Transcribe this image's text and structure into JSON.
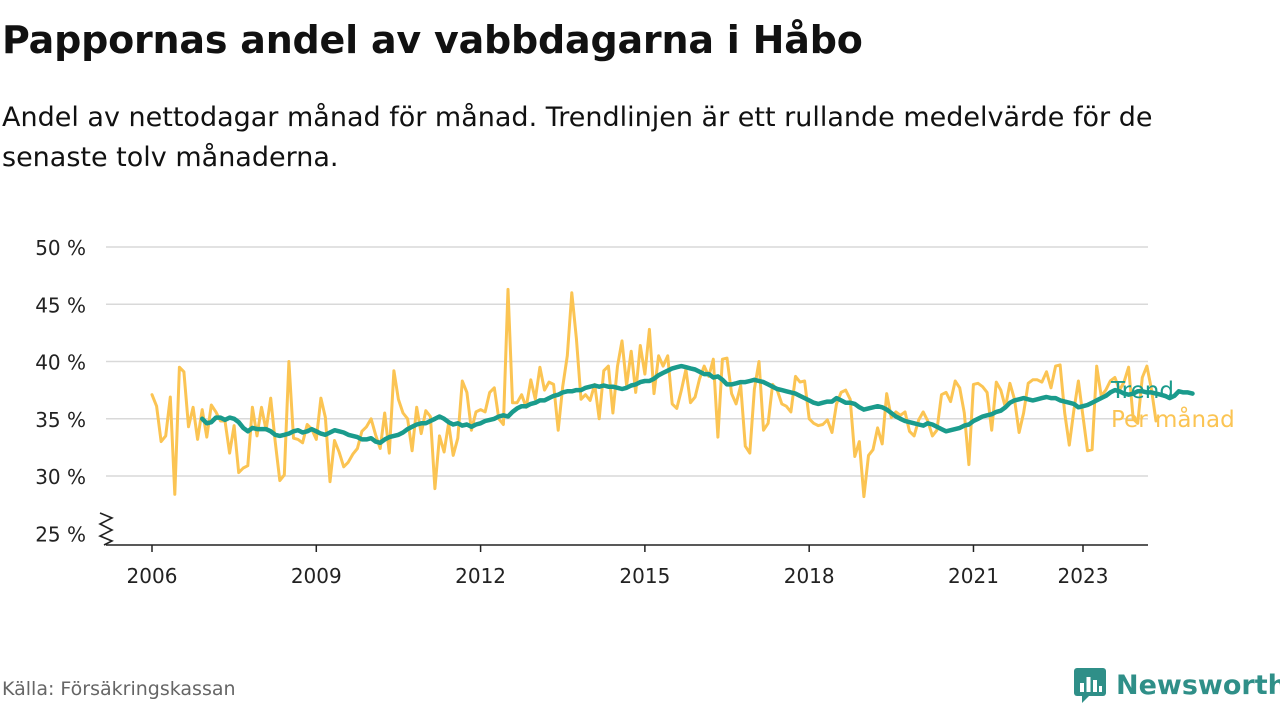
{
  "header": {
    "title": "Pappornas andel av vabbdagarna i Håbo",
    "subtitle": "Andel av nettodagar månad för månad. Trendlinjen är ett rullande medelvärde för de senaste tolv månaderna."
  },
  "footer": {
    "source": "Källa: Försäkringskassan",
    "brand": "Newsworthy"
  },
  "colors": {
    "monthly": "#fbc453",
    "trend": "#1a9b8c",
    "grid": "#d9d9d9",
    "axis": "#222222",
    "brand": "#2f8f88"
  },
  "chart_data": {
    "type": "line",
    "title": "Pappornas andel av vabbdagarna i Håbo",
    "ylim": [
      25,
      50
    ],
    "y_ticks": [
      25,
      30,
      35,
      40,
      45,
      50
    ],
    "y_tick_labels": [
      "25 %",
      "30 %",
      "35 %",
      "40 %",
      "45 %",
      "50 %"
    ],
    "y_axis_break": true,
    "x_ticks": [
      2006,
      2009,
      2012,
      2015,
      2018,
      2021,
      2023
    ],
    "x_tick_labels": [
      "2006",
      "2009",
      "2012",
      "2015",
      "2018",
      "2021",
      "2023"
    ],
    "xlim": [
      2005.1,
      2024.0
    ],
    "grid": true,
    "series": [
      {
        "name": "Per månad",
        "x_start": 2006.0,
        "step": 0.08333,
        "values": [
          37.1,
          36.1,
          33.0,
          33.5,
          36.9,
          28.4,
          39.5,
          39.1,
          34.3,
          36.0,
          33.2,
          35.8,
          33.4,
          36.2,
          35.6,
          34.8,
          34.8,
          32.0,
          34.4,
          30.3,
          30.7,
          30.9,
          36.0,
          33.5,
          36.0,
          34.0,
          36.8,
          33.0,
          29.6,
          30.1,
          40.0,
          33.3,
          33.2,
          32.9,
          34.5,
          34.1,
          33.2,
          36.8,
          35.1,
          29.5,
          33.1,
          32.1,
          30.8,
          31.2,
          31.9,
          32.4,
          33.9,
          34.3,
          35.0,
          33.6,
          32.4,
          35.5,
          32.0,
          39.2,
          36.7,
          35.5,
          35.0,
          32.2,
          36.0,
          33.7,
          35.7,
          35.2,
          28.9,
          33.5,
          32.1,
          34.6,
          31.8,
          33.3,
          38.3,
          37.3,
          34.0,
          35.6,
          35.8,
          35.6,
          37.3,
          37.7,
          35.0,
          34.5,
          46.3,
          36.4,
          36.4,
          37.1,
          36.0,
          38.4,
          36.7,
          39.5,
          37.5,
          38.2,
          38.0,
          34.0,
          37.8,
          40.5,
          46.0,
          42.0,
          36.7,
          37.1,
          36.6,
          38.0,
          35.0,
          39.2,
          39.6,
          35.5,
          39.6,
          41.8,
          37.9,
          40.9,
          37.3,
          41.4,
          38.9,
          42.8,
          37.2,
          40.5,
          39.6,
          40.5,
          36.3,
          35.9,
          37.5,
          39.3,
          36.4,
          36.9,
          38.5,
          39.6,
          38.7,
          40.2,
          33.4,
          40.2,
          40.3,
          37.2,
          36.3,
          37.9,
          32.6,
          32.0,
          37.6,
          40.0,
          34.0,
          34.6,
          38.0,
          37.5,
          36.3,
          36.1,
          35.6,
          38.7,
          38.2,
          38.3,
          35.0,
          34.6,
          34.4,
          34.5,
          34.9,
          33.8,
          36.3,
          37.3,
          37.5,
          36.7,
          31.7,
          33.0,
          28.2,
          31.8,
          32.3,
          34.2,
          32.8,
          37.2,
          35.1,
          35.6,
          35.3,
          35.6,
          33.9,
          33.5,
          34.9,
          35.6,
          34.8,
          33.5,
          34.0,
          37.1,
          37.3,
          36.5,
          38.3,
          37.7,
          35.5,
          31.0,
          38.0,
          38.1,
          37.8,
          37.3,
          34.0,
          38.2,
          37.5,
          36.0,
          38.1,
          36.7,
          33.8,
          35.5,
          38.1,
          38.4,
          38.4,
          38.2,
          39.1,
          37.7,
          39.6,
          39.7,
          35.5,
          32.7,
          35.7,
          38.3,
          35.2,
          32.2,
          32.3,
          39.6,
          37.0,
          37.5,
          38.3,
          38.6,
          37.5,
          38.2,
          39.5,
          35.0,
          34.6,
          38.6,
          39.6,
          37.6,
          34.8
        ]
      },
      {
        "name": "Trend",
        "x_start": 2006.917,
        "step": 0.08333,
        "values": [
          35.0,
          34.6,
          34.7,
          35.1,
          35.1,
          34.9,
          35.1,
          35.0,
          34.7,
          34.2,
          33.9,
          34.2,
          34.1,
          34.1,
          34.1,
          33.9,
          33.6,
          33.5,
          33.6,
          33.7,
          33.9,
          34.0,
          33.8,
          33.9,
          34.1,
          33.9,
          33.7,
          33.6,
          33.8,
          34.0,
          33.9,
          33.8,
          33.6,
          33.5,
          33.4,
          33.2,
          33.2,
          33.3,
          33.0,
          32.9,
          33.2,
          33.4,
          33.5,
          33.6,
          33.8,
          34.1,
          34.3,
          34.5,
          34.6,
          34.6,
          34.8,
          35.0,
          35.2,
          35.0,
          34.7,
          34.5,
          34.6,
          34.4,
          34.5,
          34.3,
          34.5,
          34.6,
          34.8,
          34.9,
          35.0,
          35.2,
          35.3,
          35.2,
          35.6,
          35.9,
          36.1,
          36.1,
          36.3,
          36.4,
          36.6,
          36.6,
          36.8,
          37.0,
          37.1,
          37.3,
          37.4,
          37.4,
          37.5,
          37.5,
          37.7,
          37.8,
          37.9,
          37.8,
          37.9,
          37.8,
          37.8,
          37.7,
          37.6,
          37.7,
          37.9,
          38.0,
          38.2,
          38.3,
          38.3,
          38.5,
          38.8,
          39.0,
          39.2,
          39.4,
          39.5,
          39.6,
          39.5,
          39.4,
          39.3,
          39.1,
          38.9,
          38.9,
          38.6,
          38.7,
          38.4,
          38.0,
          38.0,
          38.1,
          38.2,
          38.2,
          38.3,
          38.4,
          38.3,
          38.2,
          38.0,
          37.8,
          37.6,
          37.5,
          37.4,
          37.3,
          37.2,
          37.0,
          36.8,
          36.6,
          36.4,
          36.3,
          36.4,
          36.5,
          36.5,
          36.8,
          36.6,
          36.4,
          36.4,
          36.3,
          36.0,
          35.8,
          35.9,
          36.0,
          36.1,
          36.0,
          35.8,
          35.5,
          35.2,
          35.0,
          34.8,
          34.7,
          34.6,
          34.5,
          34.4,
          34.6,
          34.5,
          34.3,
          34.1,
          33.9,
          34.0,
          34.1,
          34.2,
          34.4,
          34.5,
          34.8,
          35.0,
          35.2,
          35.3,
          35.4,
          35.6,
          35.7,
          36.0,
          36.4,
          36.6,
          36.7,
          36.8,
          36.7,
          36.6,
          36.7,
          36.8,
          36.9,
          36.8,
          36.8,
          36.6,
          36.5,
          36.4,
          36.3,
          36.0,
          36.1,
          36.2,
          36.4,
          36.6,
          36.8,
          37.0,
          37.3,
          37.5,
          37.4,
          37.2,
          37.1,
          37.2,
          37.4,
          37.4,
          37.3,
          37.3,
          37.2,
          37.1,
          37.0,
          36.8,
          37.0,
          37.4,
          37.3,
          37.3,
          37.2
        ]
      }
    ],
    "labels": {
      "trend": "Trend",
      "monthly": "Per månad"
    }
  }
}
